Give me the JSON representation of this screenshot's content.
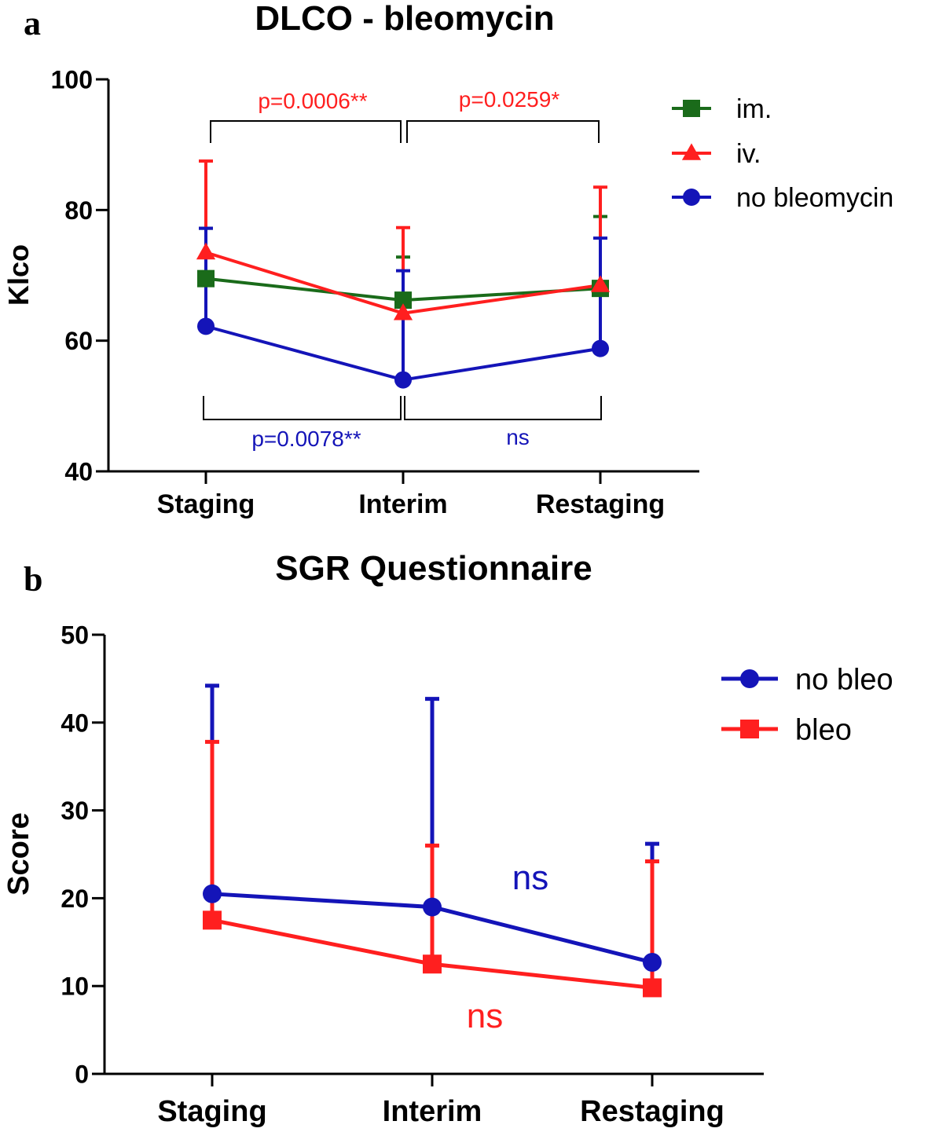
{
  "chart_data": [
    {
      "panel": "a",
      "type": "line",
      "title": "DLCO - bleomycin",
      "ylabel": "Klco",
      "xlabel": "",
      "categories": [
        "Staging",
        "Interim",
        "Restaging"
      ],
      "ylim": [
        40,
        100
      ],
      "yticks": [
        40,
        60,
        80,
        100
      ],
      "grid": false,
      "legend_position": "top-right",
      "series": [
        {
          "name": "im.",
          "color": "#1a6b1a",
          "marker": "square",
          "values": [
            69.5,
            66.2,
            68.0
          ],
          "error_upper": [
            77.2,
            72.8,
            79.0
          ]
        },
        {
          "name": "iv.",
          "color": "#ff1f1f",
          "marker": "triangle",
          "values": [
            73.5,
            64.2,
            68.5
          ],
          "error_upper": [
            87.5,
            77.3,
            83.5
          ]
        },
        {
          "name": "no bleomycin",
          "color": "#1414b8",
          "marker": "circle",
          "values": [
            62.2,
            54.0,
            58.8
          ],
          "error_upper": [
            77.2,
            70.7,
            75.7
          ]
        }
      ],
      "annotations": [
        {
          "text": "p=0.0006**",
          "color": "#ff1f1f",
          "from": "Staging",
          "to": "Interim",
          "bracket": "top"
        },
        {
          "text": "p=0.0259*",
          "color": "#ff1f1f",
          "from": "Interim",
          "to": "Restaging",
          "bracket": "top"
        },
        {
          "text": "p=0.0078**",
          "color": "#1414b8",
          "from": "Staging",
          "to": "Interim",
          "bracket": "bottom"
        },
        {
          "text": "ns",
          "color": "#1414b8",
          "from": "Interim",
          "to": "Restaging",
          "bracket": "bottom"
        }
      ]
    },
    {
      "panel": "b",
      "type": "line",
      "title": "SGR Questionnaire",
      "ylabel": "Score",
      "xlabel": "",
      "categories": [
        "Staging",
        "Interim",
        "Restaging"
      ],
      "ylim": [
        0,
        50
      ],
      "yticks": [
        0,
        10,
        20,
        30,
        40,
        50
      ],
      "grid": false,
      "legend_position": "top-right",
      "series": [
        {
          "name": "no bleo",
          "color": "#1414b8",
          "marker": "circle",
          "values": [
            20.5,
            19.0,
            12.7
          ],
          "error_upper": [
            44.2,
            42.7,
            26.2
          ]
        },
        {
          "name": "bleo",
          "color": "#ff1f1f",
          "marker": "square",
          "values": [
            17.5,
            12.5,
            9.8
          ],
          "error_upper": [
            37.8,
            26.0,
            24.2
          ]
        }
      ],
      "annotations": [
        {
          "text": "ns",
          "color": "#1414b8"
        },
        {
          "text": "ns",
          "color": "#ff1f1f"
        }
      ]
    }
  ]
}
